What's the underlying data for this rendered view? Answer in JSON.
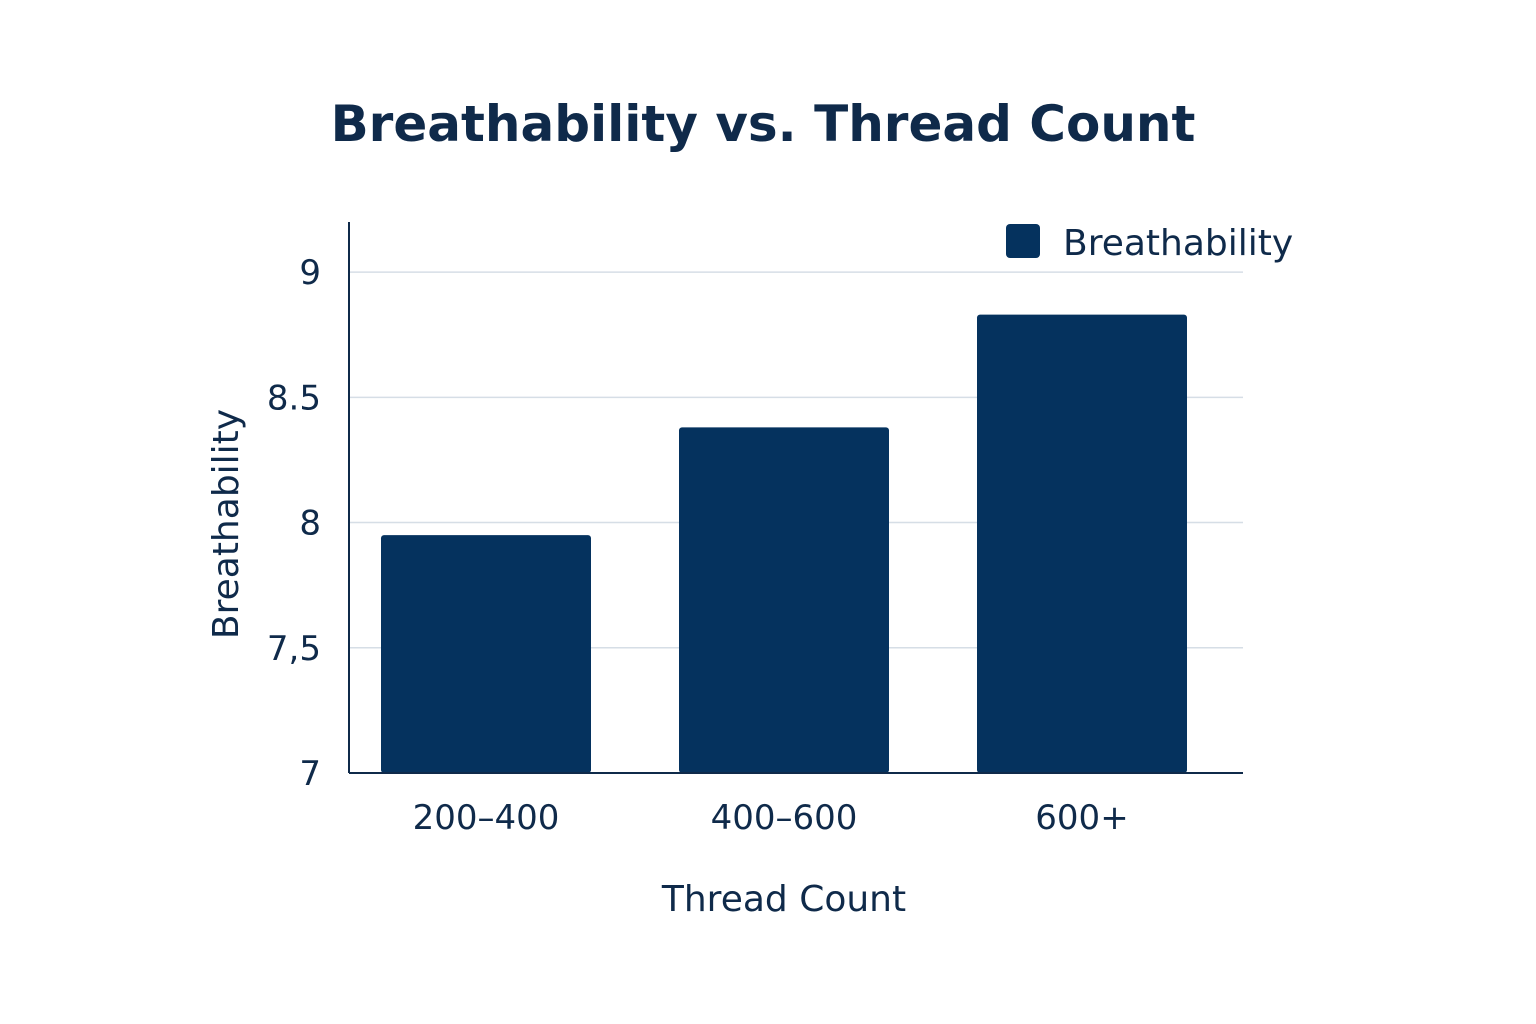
{
  "chart_data": {
    "type": "bar",
    "title": "Breathability vs. Thread Count",
    "xlabel": "Thread Count",
    "ylabel": "Breathability",
    "categories": [
      "200–400",
      "400–600",
      "600+"
    ],
    "series": [
      {
        "name": "Breathability",
        "values": [
          7.95,
          8.38,
          8.83
        ],
        "color": "#05325e"
      }
    ],
    "ylim": [
      7,
      9.2
    ],
    "yticks": [
      {
        "value": 7,
        "label": "7"
      },
      {
        "value": 7.5,
        "label": "7,5"
      },
      {
        "value": 8,
        "label": "8"
      },
      {
        "value": 8.5,
        "label": "8.5"
      },
      {
        "value": 9,
        "label": "9"
      }
    ],
    "grid": true,
    "legend": {
      "position": "top-right"
    }
  }
}
